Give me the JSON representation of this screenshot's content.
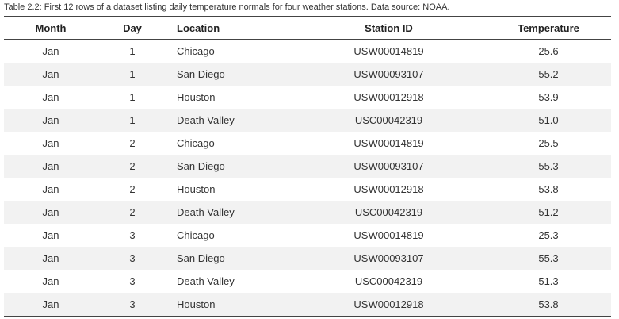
{
  "caption": "Table 2.2: First 12 rows of a dataset listing daily temperature normals for four weather stations. Data source: NOAA.",
  "table": {
    "headers": [
      "Month",
      "Day",
      "Location",
      "Station ID",
      "Temperature"
    ],
    "rows": [
      [
        "Jan",
        "1",
        "Chicago",
        "USW00014819",
        "25.6"
      ],
      [
        "Jan",
        "1",
        "San Diego",
        "USW00093107",
        "55.2"
      ],
      [
        "Jan",
        "1",
        "Houston",
        "USW00012918",
        "53.9"
      ],
      [
        "Jan",
        "1",
        "Death Valley",
        "USC00042319",
        "51.0"
      ],
      [
        "Jan",
        "2",
        "Chicago",
        "USW00014819",
        "25.5"
      ],
      [
        "Jan",
        "2",
        "San Diego",
        "USW00093107",
        "55.3"
      ],
      [
        "Jan",
        "2",
        "Houston",
        "USW00012918",
        "53.8"
      ],
      [
        "Jan",
        "2",
        "Death Valley",
        "USC00042319",
        "51.2"
      ],
      [
        "Jan",
        "3",
        "Chicago",
        "USW00014819",
        "25.3"
      ],
      [
        "Jan",
        "3",
        "San Diego",
        "USW00093107",
        "55.3"
      ],
      [
        "Jan",
        "3",
        "Death Valley",
        "USC00042319",
        "51.3"
      ],
      [
        "Jan",
        "3",
        "Houston",
        "USW00012918",
        "53.8"
      ]
    ]
  }
}
